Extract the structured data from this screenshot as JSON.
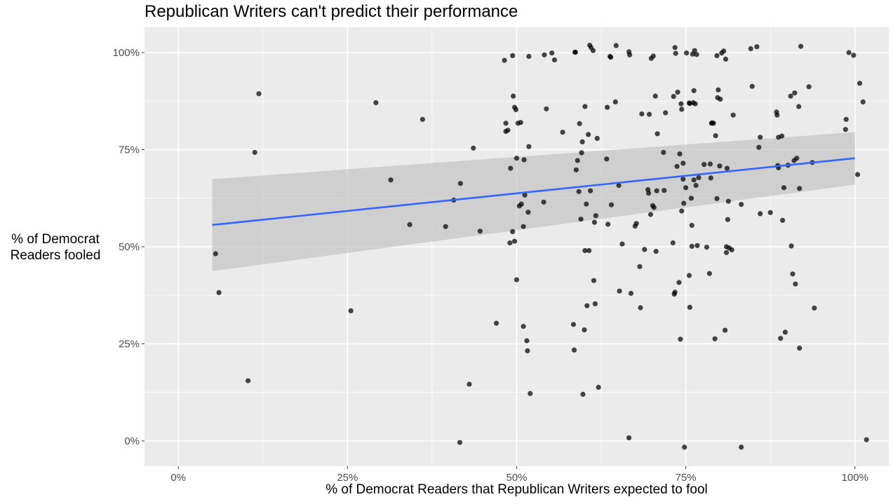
{
  "chart_data": {
    "type": "scatter",
    "title": "Republican Writers can't predict their performance",
    "xlabel": "% of Democrat Readers that Republican Writers expected to fool",
    "ylabel": "% of Democrat\nReaders fooled",
    "xlim": [
      -0.05,
      1.05
    ],
    "ylim": [
      -0.065,
      1.065
    ],
    "x_ticks": [
      0,
      0.25,
      0.5,
      0.75,
      1.0
    ],
    "x_tick_labels": [
      "0%",
      "25%",
      "50%",
      "75%",
      "100%"
    ],
    "y_ticks": [
      0,
      0.25,
      0.5,
      0.75,
      1.0
    ],
    "y_tick_labels": [
      "0%",
      "25%",
      "50%",
      "75%",
      "100%"
    ],
    "grid": true,
    "colors": {
      "panel": "#ebebeb",
      "grid": "#ffffff",
      "point": "#000000",
      "trend": "#3366ff",
      "band": "#bdbdbd"
    },
    "trend": {
      "x": [
        0.05,
        1.0
      ],
      "y": [
        0.556,
        0.728
      ],
      "ci_lower": [
        0.437,
        0.66
      ],
      "ci_upper": [
        0.674,
        0.795
      ]
    },
    "points": [
      [
        0.055,
        0.482
      ],
      [
        0.06,
        0.382
      ],
      [
        0.103,
        0.155
      ],
      [
        0.113,
        0.743
      ],
      [
        0.119,
        0.894
      ],
      [
        0.255,
        0.335
      ],
      [
        0.292,
        0.871
      ],
      [
        0.314,
        0.672
      ],
      [
        0.342,
        0.557
      ],
      [
        0.361,
        0.828
      ],
      [
        0.395,
        0.552
      ],
      [
        0.407,
        0.62
      ],
      [
        0.416,
        -0.004
      ],
      [
        0.417,
        0.663
      ],
      [
        0.43,
        0.146
      ],
      [
        0.436,
        0.754
      ],
      [
        0.446,
        0.54
      ],
      [
        0.47,
        0.303
      ],
      [
        0.482,
        0.98
      ],
      [
        0.484,
        0.818
      ],
      [
        0.484,
        0.797
      ],
      [
        0.487,
        0.8
      ],
      [
        0.49,
        0.51
      ],
      [
        0.491,
        0.702
      ],
      [
        0.494,
        0.539
      ],
      [
        0.494,
        0.992
      ],
      [
        0.495,
        0.888
      ],
      [
        0.497,
        0.859
      ],
      [
        0.497,
        0.514
      ],
      [
        0.499,
        0.853
      ],
      [
        0.5,
        0.728
      ],
      [
        0.5,
        0.415
      ],
      [
        0.502,
        0.818
      ],
      [
        0.504,
        0.605
      ],
      [
        0.506,
        0.82
      ],
      [
        0.507,
        0.61
      ],
      [
        0.51,
        0.295
      ],
      [
        0.51,
        0.552
      ],
      [
        0.511,
        0.724
      ],
      [
        0.512,
        0.633
      ],
      [
        0.515,
        0.258
      ],
      [
        0.516,
        0.232
      ],
      [
        0.517,
        0.589
      ],
      [
        0.518,
        0.99
      ],
      [
        0.518,
        0.758
      ],
      [
        0.52,
        0.122
      ],
      [
        0.54,
        0.615
      ],
      [
        0.541,
        0.994
      ],
      [
        0.544,
        0.855
      ],
      [
        0.552,
        0.999
      ],
      [
        0.556,
        0.981
      ],
      [
        0.568,
        0.795
      ],
      [
        0.584,
        0.3
      ],
      [
        0.585,
        0.234
      ],
      [
        0.586,
        1.001
      ],
      [
        0.587,
        1.001
      ],
      [
        0.588,
        0.698
      ],
      [
        0.59,
        0.722
      ],
      [
        0.592,
        0.642
      ],
      [
        0.593,
        0.817
      ],
      [
        0.595,
        0.571
      ],
      [
        0.596,
        0.742
      ],
      [
        0.597,
        0.77
      ],
      [
        0.598,
        0.12
      ],
      [
        0.6,
        0.286
      ],
      [
        0.601,
        0.861
      ],
      [
        0.601,
        0.49
      ],
      [
        0.603,
        0.61
      ],
      [
        0.604,
        0.348
      ],
      [
        0.606,
        0.789
      ],
      [
        0.607,
        0.49
      ],
      [
        0.608,
        1.019
      ],
      [
        0.609,
        0.644
      ],
      [
        0.61,
        1.013
      ],
      [
        0.613,
        1.005
      ],
      [
        0.614,
        0.413
      ],
      [
        0.615,
        0.563
      ],
      [
        0.616,
        0.353
      ],
      [
        0.617,
        0.58
      ],
      [
        0.619,
        0.779
      ],
      [
        0.621,
        0.138
      ],
      [
        0.633,
        0.726
      ],
      [
        0.634,
        0.859
      ],
      [
        0.635,
        0.558
      ],
      [
        0.638,
        0.99
      ],
      [
        0.639,
        0.988
      ],
      [
        0.64,
        0.608
      ],
      [
        0.646,
        0.873
      ],
      [
        0.647,
        1.018
      ],
      [
        0.651,
        0.658
      ],
      [
        0.652,
        0.386
      ],
      [
        0.656,
        0.507
      ],
      [
        0.666,
        1.002
      ],
      [
        0.667,
        0.994
      ],
      [
        0.666,
        0.008
      ],
      [
        0.669,
        0.38
      ],
      [
        0.675,
        0.553
      ],
      [
        0.677,
        0.56
      ],
      [
        0.682,
        0.449
      ],
      [
        0.683,
        0.343
      ],
      [
        0.685,
        0.842
      ],
      [
        0.689,
        0.493
      ],
      [
        0.694,
        0.647
      ],
      [
        0.695,
        0.638
      ],
      [
        0.696,
        0.841
      ],
      [
        0.698,
        0.583
      ],
      [
        0.699,
        0.985
      ],
      [
        0.701,
        0.606
      ],
      [
        0.702,
        0.991
      ],
      [
        0.703,
        0.601
      ],
      [
        0.705,
        0.888
      ],
      [
        0.706,
        0.488
      ],
      [
        0.707,
        0.644
      ],
      [
        0.708,
        0.791
      ],
      [
        0.717,
        0.743
      ],
      [
        0.718,
        0.645
      ],
      [
        0.72,
        0.845
      ],
      [
        0.731,
        0.51
      ],
      [
        0.732,
        0.887
      ],
      [
        0.733,
        0.378
      ],
      [
        0.734,
        1.013
      ],
      [
        0.734,
        0.383
      ],
      [
        0.735,
        0.998
      ],
      [
        0.737,
        0.707
      ],
      [
        0.738,
        0.898
      ],
      [
        0.74,
        0.408
      ],
      [
        0.741,
        0.739
      ],
      [
        0.742,
        0.262
      ],
      [
        0.743,
        0.868
      ],
      [
        0.744,
        0.854
      ],
      [
        0.744,
        0.592
      ],
      [
        0.746,
        0.674
      ],
      [
        0.746,
        0.715
      ],
      [
        0.747,
        0.612
      ],
      [
        0.748,
        -0.016
      ],
      [
        0.75,
        0.652
      ],
      [
        0.751,
        0.999
      ],
      [
        0.755,
        0.87
      ],
      [
        0.755,
        0.426
      ],
      [
        0.756,
        0.344
      ],
      [
        0.756,
        0.869
      ],
      [
        0.758,
        0.625
      ],
      [
        0.759,
        0.555
      ],
      [
        0.759,
        0.501
      ],
      [
        0.76,
        0.996
      ],
      [
        0.761,
        0.871
      ],
      [
        0.762,
        0.902
      ],
      [
        0.762,
        0.672
      ],
      [
        0.763,
        1.005
      ],
      [
        0.764,
        0.868
      ],
      [
        0.765,
        0.658
      ],
      [
        0.766,
        0.995
      ],
      [
        0.767,
        0.503
      ],
      [
        0.769,
        0.678
      ],
      [
        0.777,
        0.712
      ],
      [
        0.781,
        0.499
      ],
      [
        0.785,
        0.431
      ],
      [
        0.786,
        0.713
      ],
      [
        0.787,
        0.677
      ],
      [
        0.788,
        0.818
      ],
      [
        0.789,
        0.819
      ],
      [
        0.791,
        0.818
      ],
      [
        0.793,
        0.263
      ],
      [
        0.794,
        0.786
      ],
      [
        0.796,
        0.624
      ],
      [
        0.796,
        0.992
      ],
      [
        0.797,
        0.884
      ],
      [
        0.798,
        0.904
      ],
      [
        0.8,
        0.708
      ],
      [
        0.801,
        0.88
      ],
      [
        0.803,
        0.999
      ],
      [
        0.806,
        1.004
      ],
      [
        0.808,
        0.285
      ],
      [
        0.809,
        0.983
      ],
      [
        0.81,
        0.485
      ],
      [
        0.81,
        0.5
      ],
      [
        0.811,
        0.702
      ],
      [
        0.812,
        0.57
      ],
      [
        0.813,
        0.617
      ],
      [
        0.814,
        0.497
      ],
      [
        0.818,
        0.492
      ],
      [
        0.82,
        0.839
      ],
      [
        0.832,
        0.609
      ],
      [
        0.832,
        -0.016
      ],
      [
        0.846,
        1.01
      ],
      [
        0.848,
        0.913
      ],
      [
        0.855,
        1.015
      ],
      [
        0.858,
        0.756
      ],
      [
        0.86,
        0.782
      ],
      [
        0.86,
        0.585
      ],
      [
        0.875,
        0.588
      ],
      [
        0.884,
        0.847
      ],
      [
        0.885,
        0.839
      ],
      [
        0.886,
        0.709
      ],
      [
        0.887,
        0.782
      ],
      [
        0.887,
        0.703
      ],
      [
        0.89,
        0.264
      ],
      [
        0.892,
        0.785
      ],
      [
        0.893,
        0.568
      ],
      [
        0.895,
        0.652
      ],
      [
        0.897,
        0.28
      ],
      [
        0.901,
        0.71
      ],
      [
        0.905,
        0.888
      ],
      [
        0.906,
        0.502
      ],
      [
        0.908,
        0.43
      ],
      [
        0.91,
        0.722
      ],
      [
        0.911,
        0.896
      ],
      [
        0.912,
        0.404
      ],
      [
        0.914,
        0.728
      ],
      [
        0.917,
        0.861
      ],
      [
        0.918,
        0.239
      ],
      [
        0.918,
        0.65
      ],
      [
        0.92,
        1.016
      ],
      [
        0.932,
        0.912
      ],
      [
        0.937,
        0.717
      ],
      [
        0.94,
        0.342
      ],
      [
        0.986,
        0.802
      ],
      [
        0.987,
        0.828
      ],
      [
        0.991,
        1.0
      ],
      [
        0.998,
        0.993
      ],
      [
        1.004,
        0.686
      ],
      [
        1.007,
        0.921
      ],
      [
        1.012,
        0.873
      ],
      [
        1.017,
        0.003
      ]
    ]
  }
}
